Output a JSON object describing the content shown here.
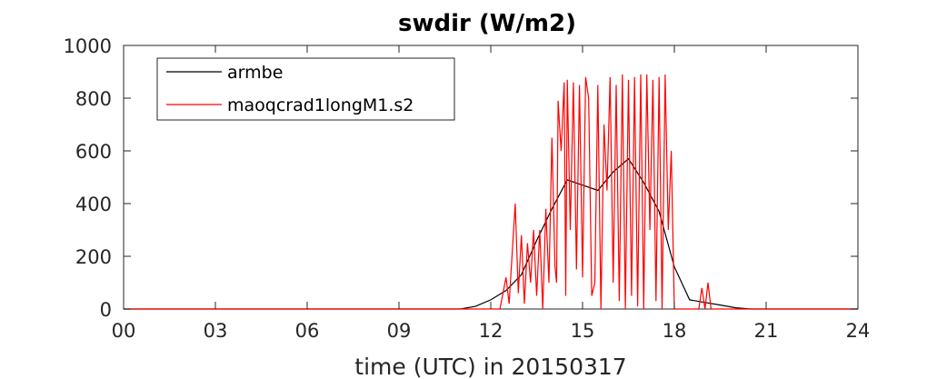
{
  "chart_data": {
    "type": "line",
    "title": "swdir  (W/m2)",
    "xlabel": "time (UTC) in 20150317",
    "ylabel": "",
    "xlim": [
      0,
      24
    ],
    "ylim": [
      0,
      1000
    ],
    "x_ticks": [
      "00",
      "03",
      "06",
      "09",
      "12",
      "15",
      "18",
      "21",
      "24"
    ],
    "y_ticks": [
      "0",
      "200",
      "400",
      "600",
      "800",
      "1000"
    ],
    "grid": false,
    "legend_position": "top-left",
    "series": [
      {
        "name": "armbe",
        "color": "#000000",
        "x": [
          0,
          1,
          2,
          3,
          4,
          5,
          6,
          7,
          8,
          9,
          10,
          11,
          11.5,
          12.0,
          12.5,
          13.0,
          13.5,
          14.0,
          14.5,
          15.0,
          15.5,
          16.0,
          16.5,
          17.0,
          17.5,
          18.0,
          18.5,
          19.0,
          19.5,
          20.0,
          20.5,
          21,
          22,
          23,
          24
        ],
        "y": [
          0,
          0,
          0,
          0,
          0,
          0,
          0,
          0,
          0,
          0,
          0,
          0,
          10,
          35,
          70,
          130,
          260,
          380,
          490,
          470,
          450,
          520,
          570,
          480,
          370,
          160,
          35,
          25,
          15,
          5,
          0,
          0,
          0,
          0,
          0
        ]
      },
      {
        "name": "maoqcrad1longM1.s2",
        "color": "#ff0000",
        "x": [
          0,
          12.3,
          12.5,
          12.6,
          12.8,
          12.9,
          13.0,
          13.1,
          13.2,
          13.3,
          13.4,
          13.5,
          13.6,
          13.7,
          13.8,
          13.9,
          14.0,
          14.1,
          14.15,
          14.2,
          14.3,
          14.4,
          14.45,
          14.5,
          14.6,
          14.7,
          14.8,
          14.9,
          15.0,
          15.1,
          15.2,
          15.3,
          15.4,
          15.5,
          15.6,
          15.7,
          15.8,
          15.9,
          16.0,
          16.1,
          16.2,
          16.3,
          16.4,
          16.5,
          16.6,
          16.7,
          16.8,
          16.9,
          17.0,
          17.1,
          17.2,
          17.3,
          17.4,
          17.5,
          17.6,
          17.7,
          17.8,
          17.9,
          18.0,
          18.1,
          18.2,
          18.3,
          18.4,
          18.5,
          18.6,
          18.7,
          18.8,
          18.9,
          19.0,
          19.1,
          19.2,
          24
        ],
        "y": [
          0,
          0,
          120,
          20,
          400,
          60,
          280,
          20,
          250,
          100,
          300,
          50,
          300,
          0,
          380,
          100,
          650,
          160,
          100,
          790,
          600,
          860,
          50,
          870,
          300,
          860,
          150,
          850,
          120,
          880,
          800,
          50,
          100,
          850,
          0,
          700,
          450,
          880,
          100,
          850,
          30,
          890,
          0,
          870,
          50,
          880,
          10,
          890,
          0,
          890,
          300,
          870,
          30,
          880,
          0,
          890,
          300,
          600,
          0,
          0,
          0,
          0,
          0,
          0,
          0,
          0,
          0,
          80,
          0,
          100,
          0,
          0
        ]
      }
    ]
  }
}
